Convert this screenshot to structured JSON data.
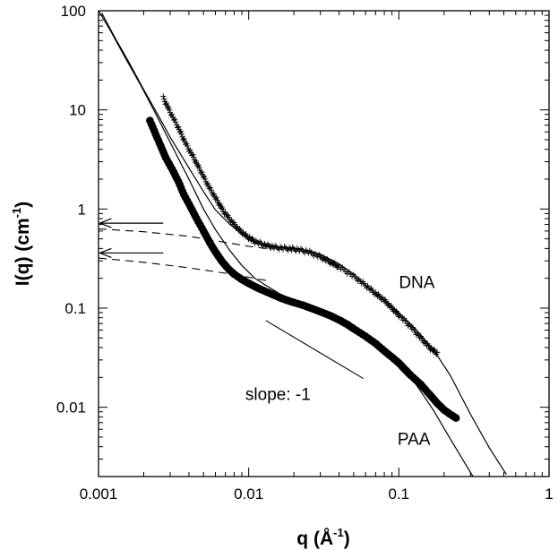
{
  "chart_data": {
    "type": "scatter",
    "xscale": "log",
    "yscale": "log",
    "xlim": [
      0.001,
      1
    ],
    "ylim": [
      0.002,
      100
    ],
    "grid": false,
    "xlabel": {
      "prefix": "q  (Å",
      "sup": "-1",
      "suffix": ")"
    },
    "ylabel": {
      "prefix": "I(q)  (cm",
      "sup": "-1",
      "suffix": ")"
    },
    "xticks": [
      {
        "value": 0.001,
        "label": "0.001"
      },
      {
        "value": 0.01,
        "label": "0.01"
      },
      {
        "value": 0.1,
        "label": "0.1"
      },
      {
        "value": 1,
        "label": "1"
      }
    ],
    "yticks": [
      {
        "value": 0.01,
        "label": "0.01"
      },
      {
        "value": 0.1,
        "label": "0.1"
      },
      {
        "value": 1,
        "label": "1"
      },
      {
        "value": 10,
        "label": "10"
      },
      {
        "value": 100,
        "label": "100"
      }
    ],
    "series": [
      {
        "name": "DNA",
        "marker": "cross",
        "x": [
          0.0027,
          0.003,
          0.0034,
          0.0038,
          0.0043,
          0.0048,
          0.0054,
          0.0061,
          0.0068,
          0.0077,
          0.0086,
          0.0097,
          0.011,
          0.013,
          0.015,
          0.018,
          0.021,
          0.025,
          0.03,
          0.035,
          0.04,
          0.05,
          0.06,
          0.07,
          0.08,
          0.09,
          0.1,
          0.12,
          0.14,
          0.16,
          0.18
        ],
        "y": [
          13.2,
          9.5,
          6.6,
          4.6,
          3.3,
          2.4,
          1.7,
          1.25,
          0.95,
          0.75,
          0.62,
          0.53,
          0.47,
          0.43,
          0.41,
          0.4,
          0.39,
          0.37,
          0.33,
          0.29,
          0.26,
          0.21,
          0.17,
          0.14,
          0.12,
          0.1,
          0.085,
          0.065,
          0.05,
          0.04,
          0.035
        ]
      },
      {
        "name": "PAA",
        "marker": "filled-circle",
        "x": [
          0.0022,
          0.0024,
          0.0026,
          0.0028,
          0.0031,
          0.0034,
          0.0037,
          0.0041,
          0.0045,
          0.005,
          0.0055,
          0.006,
          0.0066,
          0.0073,
          0.008,
          0.009,
          0.01,
          0.011,
          0.012,
          0.014,
          0.016,
          0.018,
          0.02,
          0.023,
          0.026,
          0.03,
          0.035,
          0.04,
          0.045,
          0.05,
          0.06,
          0.07,
          0.08,
          0.09,
          0.1,
          0.11,
          0.12,
          0.14,
          0.16,
          0.18,
          0.2,
          0.22,
          0.24
        ],
        "y": [
          7.8,
          5.7,
          4.3,
          3.3,
          2.5,
          1.9,
          1.4,
          1.05,
          0.8,
          0.6,
          0.46,
          0.37,
          0.3,
          0.25,
          0.22,
          0.195,
          0.178,
          0.165,
          0.155,
          0.14,
          0.128,
          0.12,
          0.114,
          0.107,
          0.1,
          0.092,
          0.084,
          0.076,
          0.069,
          0.062,
          0.052,
          0.044,
          0.037,
          0.032,
          0.028,
          0.024,
          0.021,
          0.017,
          0.0135,
          0.011,
          0.0094,
          0.0085,
          0.0078
        ]
      }
    ],
    "fit_curves": [
      {
        "x": [
          0.00105,
          0.0013,
          0.0016,
          0.002,
          0.0025,
          0.003,
          0.004,
          0.005,
          0.006,
          0.0075,
          0.009,
          0.011,
          0.013,
          0.016,
          0.02,
          0.025,
          0.03,
          0.04,
          0.05,
          0.06,
          0.08,
          0.1,
          0.13,
          0.17,
          0.22,
          0.3,
          0.4,
          0.52
        ],
        "y": [
          95,
          52,
          30,
          16,
          8.8,
          5.3,
          2.6,
          1.5,
          0.98,
          0.7,
          0.56,
          0.47,
          0.43,
          0.41,
          0.4,
          0.38,
          0.35,
          0.28,
          0.22,
          0.17,
          0.12,
          0.09,
          0.061,
          0.038,
          0.021,
          0.0085,
          0.0039,
          0.0021
        ]
      },
      {
        "x": [
          0.001,
          0.0012,
          0.0015,
          0.0019,
          0.0024,
          0.003,
          0.004,
          0.005,
          0.006,
          0.0075,
          0.009,
          0.011,
          0.013,
          0.016,
          0.02,
          0.025,
          0.03,
          0.04,
          0.05,
          0.07,
          0.1,
          0.13,
          0.17,
          0.22,
          0.3,
          0.4
        ],
        "y": [
          100,
          63,
          34,
          18,
          9.2,
          4.7,
          2.0,
          1.0,
          0.62,
          0.38,
          0.27,
          0.2,
          0.17,
          0.14,
          0.12,
          0.105,
          0.096,
          0.08,
          0.065,
          0.045,
          0.027,
          0.017,
          0.0093,
          0.0048,
          0.0022,
          0.0011
        ]
      }
    ],
    "dashed_curves": [
      {
        "x": [
          0.001,
          0.002,
          0.004,
          0.007,
          0.01,
          0.013
        ],
        "y": [
          0.63,
          0.59,
          0.53,
          0.46,
          0.42,
          0.4
        ]
      },
      {
        "x": [
          0.001,
          0.002,
          0.004,
          0.007,
          0.01,
          0.013
        ],
        "y": [
          0.32,
          0.29,
          0.255,
          0.225,
          0.205,
          0.19
        ]
      }
    ],
    "arrows": [
      {
        "from": [
          0.0027,
          0.72
        ],
        "to": [
          0.00102,
          0.72
        ]
      },
      {
        "from": [
          0.0027,
          0.36
        ],
        "to": [
          0.00102,
          0.36
        ]
      }
    ],
    "slope_line": {
      "x": [
        0.013,
        0.058
      ],
      "y": [
        0.075,
        0.0195
      ]
    },
    "annotations": [
      {
        "text": "DNA",
        "x": 0.1,
        "y": 0.16
      },
      {
        "text": "PAA",
        "x": 0.098,
        "y": 0.0042
      },
      {
        "text": "slope: -1",
        "x": 0.0095,
        "y": 0.0118
      }
    ]
  }
}
